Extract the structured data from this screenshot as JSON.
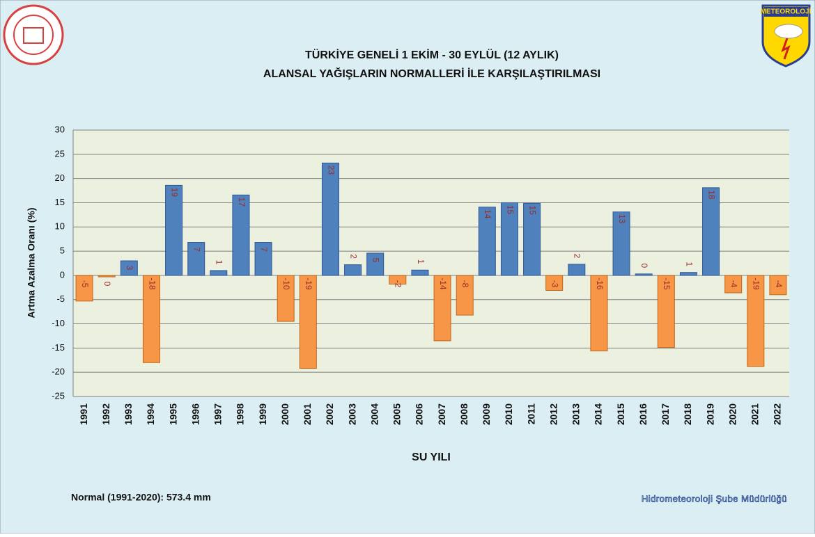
{
  "chart_data": {
    "type": "bar",
    "title": "TÜRKİYE GENELİ  1 EKİM - 30 EYLÜL (12 AYLIK)",
    "subtitle": "ALANSAL YAĞIŞLARIN NORMALLERİ İLE KARŞILAŞTIRILMASI",
    "y_label": "Artma Azalma Oranı (%)",
    "x_label": "SU YILI",
    "note": "Normal (1991-2020):  573.4 mm",
    "credit": "Hidrometeoroloji Şube Müdürlüğü",
    "logo_text": "METEOROLOJİ",
    "categories": [
      "1991",
      "1992",
      "1993",
      "1994",
      "1995",
      "1996",
      "1997",
      "1998",
      "1999",
      "2000",
      "2001",
      "2002",
      "2003",
      "2004",
      "2005",
      "2006",
      "2007",
      "2008",
      "2009",
      "2010",
      "2011",
      "2012",
      "2013",
      "2014",
      "2015",
      "2016",
      "2017",
      "2018",
      "2019",
      "2020",
      "2021",
      "2022"
    ],
    "values": [
      -5.3,
      -0.3,
      3.0,
      -18.0,
      18.6,
      6.8,
      1.0,
      16.6,
      6.8,
      -9.5,
      -19.2,
      23.2,
      2.2,
      4.6,
      -1.8,
      1.1,
      -13.5,
      -8.2,
      14.1,
      15.0,
      14.9,
      -3.1,
      2.3,
      -15.6,
      13.1,
      0.3,
      -14.9,
      0.6,
      18.1,
      -3.6,
      -18.8,
      -4.0
    ],
    "value_labels": [
      "-5",
      "0",
      "3",
      "-18",
      "19",
      "7",
      "1",
      "17",
      "7",
      "-10",
      "-19",
      "23",
      "2",
      "5",
      "-2",
      "1",
      "-14",
      "-8",
      "14",
      "15",
      "15",
      "-3",
      "2",
      "-16",
      "13",
      "0",
      "-15",
      "1",
      "18",
      "-4",
      "-19",
      "-4"
    ],
    "positive_color": "#4f81bd",
    "negative_color": "#f79646",
    "ylim": [
      -25,
      30
    ],
    "yticks": [
      -25,
      -20,
      -15,
      -10,
      -5,
      0,
      5,
      10,
      15,
      20,
      25,
      30
    ],
    "grid": true
  }
}
